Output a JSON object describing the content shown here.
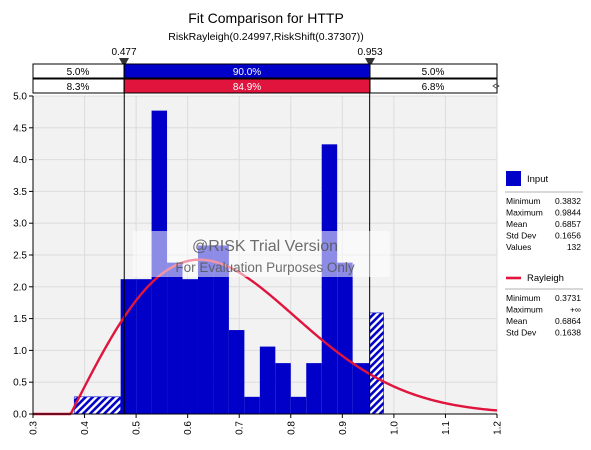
{
  "chart_data": {
    "type": "bar",
    "title": "Fit Comparison for HTTP",
    "subtitle": "RiskRayleigh(0.24997,RiskShift(0.37307))",
    "x_ticks": [
      "0.3",
      "0.4",
      "0.5",
      "0.6",
      "0.7",
      "0.8",
      "0.9",
      "1.0",
      "1.1",
      "1.2"
    ],
    "y_ticks": [
      "0.0",
      "0.5",
      "1.0",
      "1.5",
      "2.0",
      "2.5",
      "3.0",
      "3.5",
      "4.0",
      "4.5",
      "5.0"
    ],
    "xlim": [
      0.3,
      1.2
    ],
    "ylim": [
      0,
      5.0
    ],
    "grid": true,
    "delimiters": {
      "left": "0.477",
      "right": "0.953",
      "left_value": 0.477,
      "right_value": 0.953
    },
    "band_input": {
      "left": "5.0%",
      "mid": "90.0%",
      "right": "5.0%"
    },
    "band_fit": {
      "left": "8.3%",
      "mid": "84.9%",
      "right": "6.8%"
    },
    "histogram": {
      "name": "Input",
      "color": "#0000c8",
      "bins": [
        {
          "x0": 0.38,
          "x1": 0.47,
          "y": 0.27
        },
        {
          "x0": 0.47,
          "x1": 0.5,
          "y": 2.12
        },
        {
          "x0": 0.5,
          "x1": 0.53,
          "y": 2.12
        },
        {
          "x0": 0.53,
          "x1": 0.56,
          "y": 4.77
        },
        {
          "x0": 0.56,
          "x1": 0.59,
          "y": 2.38
        },
        {
          "x0": 0.59,
          "x1": 0.62,
          "y": 2.12
        },
        {
          "x0": 0.62,
          "x1": 0.65,
          "y": 2.65
        },
        {
          "x0": 0.65,
          "x1": 0.68,
          "y": 2.65
        },
        {
          "x0": 0.68,
          "x1": 0.71,
          "y": 1.32
        },
        {
          "x0": 0.71,
          "x1": 0.74,
          "y": 0.27
        },
        {
          "x0": 0.74,
          "x1": 0.77,
          "y": 1.06
        },
        {
          "x0": 0.77,
          "x1": 0.8,
          "y": 0.8
        },
        {
          "x0": 0.8,
          "x1": 0.83,
          "y": 0.27
        },
        {
          "x0": 0.83,
          "x1": 0.86,
          "y": 0.8
        },
        {
          "x0": 0.86,
          "x1": 0.89,
          "y": 4.24
        },
        {
          "x0": 0.89,
          "x1": 0.92,
          "y": 2.38
        },
        {
          "x0": 0.92,
          "x1": 0.953,
          "y": 0.8
        },
        {
          "x0": 0.953,
          "x1": 0.98,
          "y": 1.59
        }
      ]
    },
    "fit_curve": {
      "name": "Rayleigh",
      "color": "#e0143c",
      "sigma": 0.24997,
      "shift": 0.37307
    },
    "watermark": [
      "@RISK Trial Version",
      "For Evaluation Purposes Only"
    ],
    "legend": {
      "placement": "right",
      "input_stats": [
        [
          "Minimum",
          "0.3832"
        ],
        [
          "Maximum",
          "0.9844"
        ],
        [
          "Mean",
          "0.6857"
        ],
        [
          "Std Dev",
          "0.1656"
        ],
        [
          "Values",
          "132"
        ]
      ],
      "fit_stats": [
        [
          "Minimum",
          "0.3731"
        ],
        [
          "Maximum",
          "+∞"
        ],
        [
          "Mean",
          "0.6864"
        ],
        [
          "Std Dev",
          "0.1638"
        ]
      ]
    }
  }
}
